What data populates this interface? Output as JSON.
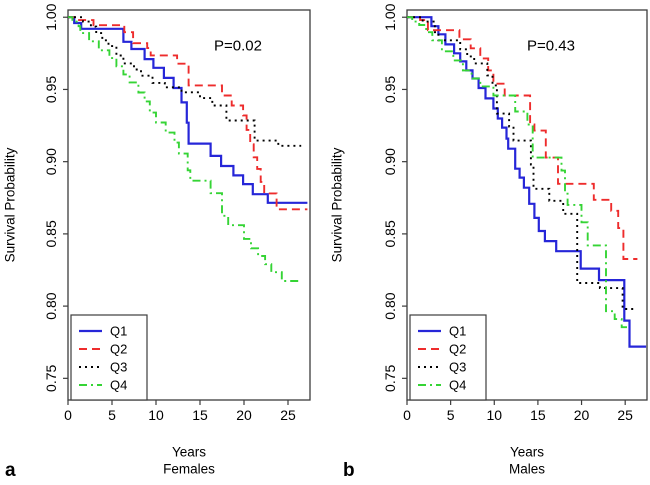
{
  "figure": {
    "kind": "kaplan-meier-survival",
    "background": "#ffffff",
    "axis_color": "#3c3c3c",
    "text_color": "#000000"
  },
  "chart_data": [
    {
      "id": "a",
      "type": "line",
      "subtype": "step-survival",
      "letter": "a",
      "p_label": "P=0.02",
      "xlabel": "Years",
      "group": "Females",
      "ylabel": "Survival Probability",
      "xlim": [
        0,
        27.5
      ],
      "ylim": [
        0.735,
        1.005
      ],
      "xticks": [
        0,
        5,
        10,
        15,
        20,
        25
      ],
      "yticks": [
        0.75,
        0.8,
        0.85,
        0.9,
        0.95,
        1.0
      ],
      "legend_position": "bottom-left",
      "grid": false,
      "series": [
        {
          "name": "Q1",
          "color": "#2626D8",
          "dash": "solid",
          "points": [
            [
              0,
              1
            ],
            [
              0.7,
              0.996
            ],
            [
              1.5,
              0.992
            ],
            [
              6.3,
              0.983
            ],
            [
              7.2,
              0.978
            ],
            [
              8.7,
              0.971
            ],
            [
              9.7,
              0.965
            ],
            [
              10.9,
              0.958
            ],
            [
              12,
              0.951
            ],
            [
              12.9,
              0.941
            ],
            [
              13.5,
              0.927
            ],
            [
              13.7,
              0.9125
            ],
            [
              16.2,
              0.904
            ],
            [
              17.4,
              0.897
            ],
            [
              18.8,
              0.8905
            ],
            [
              19.9,
              0.8845
            ],
            [
              21,
              0.8775
            ],
            [
              22.7,
              0.8715
            ],
            [
              27.2,
              0.8715
            ]
          ]
        },
        {
          "name": "Q2",
          "color": "#EE2C2C",
          "dash": "dashed",
          "points": [
            [
              0,
              1
            ],
            [
              1,
              0.998
            ],
            [
              2.9,
              0.9945
            ],
            [
              6.4,
              0.9896
            ],
            [
              7.4,
              0.982
            ],
            [
              9,
              0.9786
            ],
            [
              9.4,
              0.9736
            ],
            [
              12.4,
              0.9678
            ],
            [
              13.7,
              0.9528
            ],
            [
              17.5,
              0.9458
            ],
            [
              18.6,
              0.9389
            ],
            [
              19.9,
              0.932
            ],
            [
              20.3,
              0.922
            ],
            [
              20.7,
              0.912
            ],
            [
              21.1,
              0.903
            ],
            [
              21.5,
              0.895
            ],
            [
              21.9,
              0.886
            ],
            [
              22.3,
              0.878
            ],
            [
              23.7,
              0.867
            ],
            [
              27.2,
              0.867
            ]
          ]
        },
        {
          "name": "Q3",
          "color": "#000000",
          "dash": "dotted",
          "points": [
            [
              0,
              1
            ],
            [
              1.7,
              0.997
            ],
            [
              2.6,
              0.9935
            ],
            [
              3.2,
              0.989
            ],
            [
              3.9,
              0.984
            ],
            [
              4.6,
              0.98
            ],
            [
              5.5,
              0.9735
            ],
            [
              6.3,
              0.968
            ],
            [
              7.5,
              0.9638
            ],
            [
              8.3,
              0.9595
            ],
            [
              9.6,
              0.9545
            ],
            [
              11,
              0.9515
            ],
            [
              12.9,
              0.948
            ],
            [
              15,
              0.944
            ],
            [
              16.4,
              0.9389
            ],
            [
              18,
              0.9285
            ],
            [
              21.2,
              0.9146
            ],
            [
              23.9,
              0.911
            ],
            [
              26.5,
              0.911
            ]
          ]
        },
        {
          "name": "Q4",
          "color": "#35D435",
          "dash": "dashdot",
          "points": [
            [
              0,
              1
            ],
            [
              0.5,
              0.997
            ],
            [
              1.2,
              0.9938
            ],
            [
              1.4,
              0.989
            ],
            [
              2.4,
              0.9833
            ],
            [
              3.5,
              0.9771
            ],
            [
              4.7,
              0.9717
            ],
            [
              5.5,
              0.966
            ],
            [
              6.3,
              0.9604
            ],
            [
              7,
              0.9549
            ],
            [
              8,
              0.9479
            ],
            [
              8.7,
              0.9417
            ],
            [
              9.3,
              0.934
            ],
            [
              10,
              0.9271
            ],
            [
              11.1,
              0.9201
            ],
            [
              12.1,
              0.9132
            ],
            [
              12.6,
              0.9056
            ],
            [
              13.6,
              0.894
            ],
            [
              13.9,
              0.8868
            ],
            [
              16.2,
              0.8782
            ],
            [
              17.5,
              0.8625
            ],
            [
              18.2,
              0.856
            ],
            [
              20,
              0.8465
            ],
            [
              20.8,
              0.84
            ],
            [
              21.6,
              0.8347
            ],
            [
              22.4,
              0.829
            ],
            [
              23.1,
              0.8235
            ],
            [
              24.3,
              0.8174
            ],
            [
              26.2,
              0.8174
            ]
          ]
        }
      ]
    },
    {
      "id": "b",
      "type": "line",
      "subtype": "step-survival",
      "letter": "b",
      "p_label": "P=0.43",
      "xlabel": "Years",
      "group": "Males",
      "ylabel": "Survival Probability",
      "xlim": [
        0,
        27.5
      ],
      "ylim": [
        0.735,
        1.005
      ],
      "xticks": [
        0,
        5,
        10,
        15,
        20,
        25
      ],
      "yticks": [
        0.75,
        0.8,
        0.85,
        0.9,
        0.95,
        1.0
      ],
      "legend_position": "bottom-left",
      "grid": false,
      "series": [
        {
          "name": "Q1",
          "color": "#2626D8",
          "dash": "solid",
          "points": [
            [
              0,
              1
            ],
            [
              2.8,
              0.9938
            ],
            [
              3.6,
              0.9882
            ],
            [
              4.4,
              0.9812
            ],
            [
              5.4,
              0.975
            ],
            [
              6.1,
              0.9694
            ],
            [
              6.8,
              0.9632
            ],
            [
              7.5,
              0.9576
            ],
            [
              8.2,
              0.951
            ],
            [
              9,
              0.9438
            ],
            [
              9.9,
              0.9368
            ],
            [
              10.4,
              0.9299
            ],
            [
              10.9,
              0.9236
            ],
            [
              11.4,
              0.916
            ],
            [
              11.6,
              0.909
            ],
            [
              12.4,
              0.8951
            ],
            [
              12.9,
              0.889
            ],
            [
              13.4,
              0.882
            ],
            [
              14,
              0.8708
            ],
            [
              14.6,
              0.8611
            ],
            [
              15.1,
              0.852
            ],
            [
              15.8,
              0.845
            ],
            [
              17.1,
              0.838
            ],
            [
              19.9,
              0.826
            ],
            [
              22,
              0.818
            ],
            [
              24.9,
              0.79
            ],
            [
              25.5,
              0.772
            ],
            [
              27.4,
              0.772
            ]
          ]
        },
        {
          "name": "Q2",
          "color": "#EE2C2C",
          "dash": "dashed",
          "points": [
            [
              0,
              1
            ],
            [
              1.5,
              0.998
            ],
            [
              2.4,
              0.991
            ],
            [
              6,
              0.9847
            ],
            [
              7.3,
              0.9785
            ],
            [
              8.4,
              0.9715
            ],
            [
              9.3,
              0.9632
            ],
            [
              9.9,
              0.954
            ],
            [
              11.2,
              0.9458
            ],
            [
              14.1,
              0.9257
            ],
            [
              14.6,
              0.9215
            ],
            [
              15.9,
              0.9028
            ],
            [
              17.3,
              0.8847
            ],
            [
              21.4,
              0.8736
            ],
            [
              23.4,
              0.866
            ],
            [
              24.2,
              0.854
            ],
            [
              24.8,
              0.8326
            ],
            [
              26.4,
              0.8326
            ]
          ]
        },
        {
          "name": "Q3",
          "color": "#000000",
          "dash": "dotted",
          "points": [
            [
              0,
              1
            ],
            [
              1.8,
              0.997
            ],
            [
              3.2,
              0.9896
            ],
            [
              3.6,
              0.984
            ],
            [
              6.1,
              0.9778
            ],
            [
              6.9,
              0.9729
            ],
            [
              7.7,
              0.968
            ],
            [
              9.2,
              0.9597
            ],
            [
              9.8,
              0.9528
            ],
            [
              10.3,
              0.9333
            ],
            [
              11.7,
              0.9243
            ],
            [
              12.2,
              0.9146
            ],
            [
              14.2,
              0.898
            ],
            [
              14.5,
              0.8812
            ],
            [
              16.3,
              0.8729
            ],
            [
              17.9,
              0.8639
            ],
            [
              19.5,
              0.816
            ],
            [
              22.1,
              0.8125
            ],
            [
              24.7,
              0.798
            ],
            [
              26.3,
              0.798
            ]
          ]
        },
        {
          "name": "Q4",
          "color": "#35D435",
          "dash": "dashdot",
          "points": [
            [
              0,
              1
            ],
            [
              0.6,
              0.997
            ],
            [
              1.4,
              0.9946
            ],
            [
              2.2,
              0.9896
            ],
            [
              2.9,
              0.984
            ],
            [
              4,
              0.9764
            ],
            [
              5.3,
              0.9701
            ],
            [
              6.4,
              0.9632
            ],
            [
              7.4,
              0.9576
            ],
            [
              8.4,
              0.9521
            ],
            [
              9.9,
              0.9458
            ],
            [
              12.4,
              0.9347
            ],
            [
              13.8,
              0.9257
            ],
            [
              14.4,
              0.9028
            ],
            [
              17.7,
              0.8938
            ],
            [
              18.1,
              0.8778
            ],
            [
              18.4,
              0.8701
            ],
            [
              20,
              0.858
            ],
            [
              20.7,
              0.842
            ],
            [
              22.8,
              0.7965
            ],
            [
              23.8,
              0.791
            ],
            [
              24.6,
              0.7854
            ],
            [
              25.5,
              0.7854
            ]
          ]
        }
      ]
    }
  ]
}
